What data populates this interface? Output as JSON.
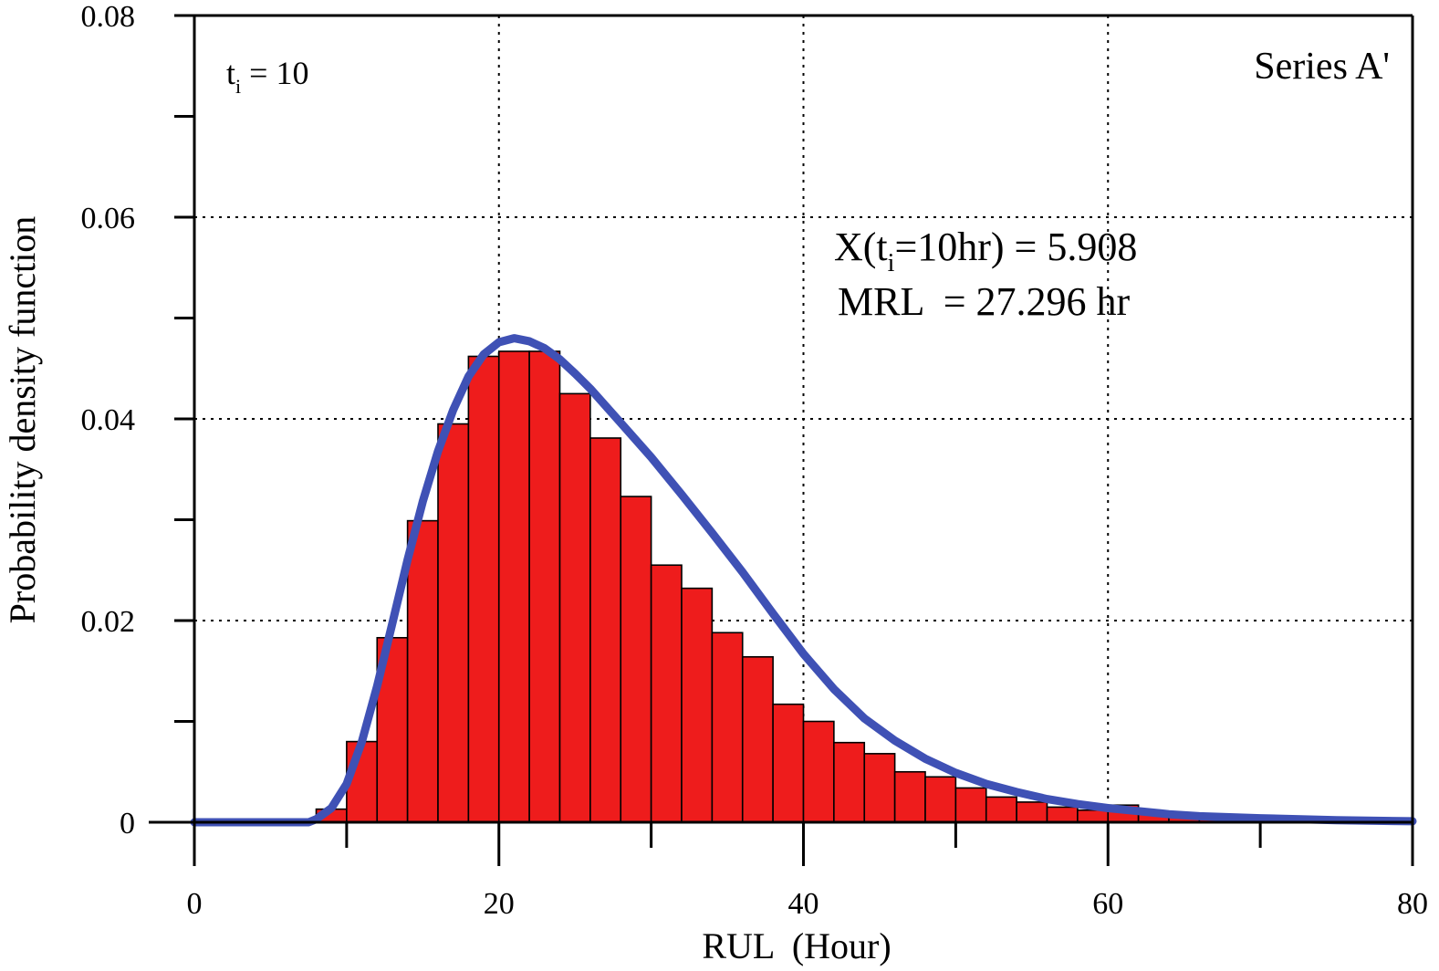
{
  "chart_data": {
    "type": "bar",
    "title": "",
    "xlabel": "RUL  (Hour)",
    "ylabel": "Probability density function",
    "xlim": [
      0,
      80
    ],
    "ylim": [
      0,
      0.08
    ],
    "x_ticks": [
      0,
      20,
      40,
      60,
      80
    ],
    "x_tick_labels": [
      "0",
      "20",
      "40",
      "60",
      "80"
    ],
    "y_ticks": [
      0,
      0.02,
      0.04,
      0.06,
      0.08
    ],
    "y_tick_labels": [
      "0",
      "0.02",
      "0.04",
      "0.06",
      "0.08"
    ],
    "grid": true,
    "legend": "none",
    "annotations": {
      "series_label": "Series A'",
      "ti_label": "t",
      "ti_subscript": "i",
      "ti_value": " = 10",
      "x_label_prefix": "X(t",
      "x_label_subscript": "i",
      "x_label_suffix": "=10hr) = 5.908",
      "mrl_label": "MRL  = 27.296 hr"
    },
    "histogram": {
      "color": "#ee1c1c",
      "bin_width": 2,
      "bin_starts": [
        8,
        10,
        12,
        14,
        16,
        18,
        20,
        22,
        24,
        26,
        28,
        30,
        32,
        34,
        36,
        38,
        40,
        42,
        44,
        46,
        48,
        50,
        52,
        54,
        56,
        58,
        60,
        62,
        64,
        66,
        68
      ],
      "values": [
        0.0013,
        0.008,
        0.0183,
        0.0299,
        0.0395,
        0.0462,
        0.0467,
        0.0467,
        0.0425,
        0.0381,
        0.0323,
        0.0255,
        0.0232,
        0.0188,
        0.0164,
        0.0117,
        0.01,
        0.0079,
        0.0068,
        0.005,
        0.0045,
        0.0034,
        0.0025,
        0.002,
        0.0015,
        0.0012,
        0.0017,
        0.0009,
        0.0005,
        0.0003,
        0.0002
      ]
    },
    "pdf_curve": {
      "color": "#3f51b5",
      "x": [
        0,
        7.5,
        8,
        9,
        10,
        11,
        12,
        13,
        14,
        15,
        16,
        17,
        18,
        19,
        20,
        21,
        22,
        23,
        24,
        25,
        26,
        27,
        28,
        30,
        32,
        34,
        36,
        38,
        40,
        42,
        44,
        46,
        48,
        50,
        52,
        54,
        56,
        58,
        60,
        62,
        64,
        66,
        68,
        70,
        75,
        80
      ],
      "y": [
        0,
        0,
        0.0003,
        0.0014,
        0.0038,
        0.008,
        0.0135,
        0.0197,
        0.026,
        0.0318,
        0.0368,
        0.0409,
        0.0442,
        0.0464,
        0.0476,
        0.048,
        0.0477,
        0.047,
        0.0459,
        0.0445,
        0.043,
        0.0413,
        0.0396,
        0.0362,
        0.0325,
        0.0287,
        0.0248,
        0.0207,
        0.0167,
        0.0132,
        0.0103,
        0.0081,
        0.0063,
        0.0049,
        0.0038,
        0.003,
        0.0023,
        0.0018,
        0.0014,
        0.0011,
        0.0008,
        0.0006,
        0.0005,
        0.0004,
        0.0002,
        0.0001
      ]
    }
  }
}
